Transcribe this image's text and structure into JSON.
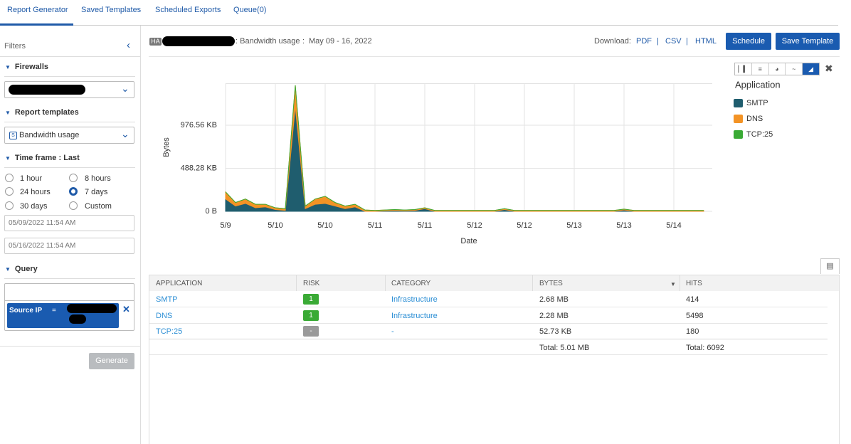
{
  "tabs": [
    "Report Generator",
    "Saved Templates",
    "Scheduled Exports",
    "Queue(0)"
  ],
  "filters": {
    "title": "Filters",
    "firewalls": "Firewalls",
    "report_templates": "Report templates",
    "template_value": "Bandwidth usage",
    "time_frame": "Time frame : Last",
    "time_options": [
      "1 hour",
      "8 hours",
      "24 hours",
      "7 days",
      "30 days",
      "Custom"
    ],
    "date_from": "05/09/2022 11:54 AM",
    "date_to": "05/16/2022 11:54 AM",
    "query": "Query",
    "chip_field": "Source IP",
    "chip_op": "=",
    "generate": "Generate"
  },
  "header": {
    "badge": "HA",
    "report": ": Bandwidth usage",
    "separator": ":",
    "range": "May 09 - 16, 2022",
    "download": "Download:",
    "formats": [
      "PDF",
      "CSV",
      "HTML"
    ],
    "divider": "|",
    "schedule": "Schedule",
    "save_template": "Save Template"
  },
  "chart": {
    "type": "area",
    "stacked": true,
    "y_label": "Bytes",
    "x_label": "Date",
    "legend_title": "Application",
    "grid": true,
    "categories": [
      "5/9",
      null,
      null,
      null,
      null,
      "5/10",
      null,
      null,
      null,
      null,
      "5/10",
      null,
      null,
      null,
      null,
      "5/11",
      null,
      null,
      null,
      null,
      "5/11",
      null,
      null,
      null,
      null,
      "5/12",
      null,
      null,
      null,
      null,
      "5/12",
      null,
      null,
      null,
      null,
      "5/13",
      null,
      null,
      null,
      null,
      "5/13",
      null,
      null,
      null,
      null,
      "5/14",
      null,
      null,
      null
    ],
    "series": [
      {
        "name": "SMTP",
        "color": "#1f5d6e",
        "values": [
          140,
          60,
          90,
          40,
          50,
          20,
          10,
          1190,
          30,
          80,
          90,
          60,
          30,
          50,
          0,
          0,
          5,
          10,
          5,
          10,
          30,
          0,
          0,
          0,
          0,
          0,
          0,
          0,
          20,
          0,
          0,
          0,
          0,
          0,
          0,
          0,
          0,
          0,
          0,
          0,
          15,
          0,
          0,
          0,
          0,
          0,
          0,
          0,
          0
        ]
      },
      {
        "name": "DNS",
        "color": "#f39325",
        "values": [
          80,
          40,
          50,
          40,
          30,
          20,
          20,
          240,
          30,
          60,
          80,
          40,
          30,
          30,
          15,
          10,
          10,
          10,
          10,
          10,
          10,
          10,
          10,
          10,
          10,
          10,
          10,
          10,
          10,
          10,
          10,
          10,
          10,
          10,
          10,
          10,
          10,
          10,
          10,
          10,
          10,
          10,
          10,
          10,
          10,
          10,
          10,
          10,
          10
        ]
      },
      {
        "name": "TCP:25",
        "color": "#3aaa35",
        "values": [
          0,
          0,
          0,
          0,
          0,
          0,
          0,
          0,
          0,
          0,
          0,
          0,
          0,
          0,
          0,
          0,
          0,
          0,
          0,
          0,
          0,
          0,
          0,
          0,
          0,
          0,
          0,
          0,
          0,
          0,
          0,
          0,
          0,
          0,
          0,
          0,
          0,
          0,
          0,
          0,
          0,
          0,
          0,
          0,
          0,
          0,
          0,
          0,
          0
        ]
      }
    ],
    "ylim": [
      0,
      1464.84
    ],
    "yticks": [
      {
        "value": 0,
        "label": "0 B"
      },
      {
        "value": 488.28,
        "label": "488.28 KB"
      },
      {
        "value": 976.56,
        "label": "976.56 KB"
      }
    ]
  },
  "table": {
    "columns": [
      "APPLICATION",
      "RISK",
      "CATEGORY",
      "BYTES",
      "HITS"
    ],
    "rows": [
      [
        "SMTP",
        "1",
        "Infrastructure",
        "2.68 MB",
        "414"
      ],
      [
        "DNS",
        "1",
        "Infrastructure",
        "2.28 MB",
        "5498"
      ],
      [
        "TCP:25",
        "-",
        "-",
        "52.73 KB",
        "180"
      ]
    ],
    "totals": [
      "Total: 5.01 MB",
      "Total: 6092"
    ]
  }
}
